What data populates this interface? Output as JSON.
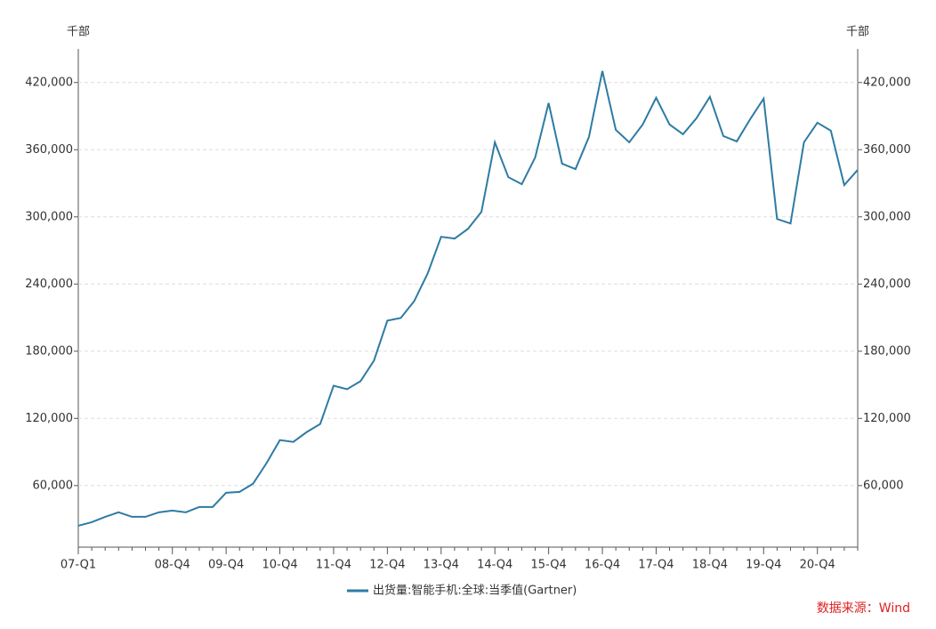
{
  "chart_data": {
    "type": "line",
    "y_label": "千部",
    "y2_label": "千部",
    "source": "数据来源：Wind",
    "categories": [
      "07-Q1",
      null,
      null,
      null,
      null,
      null,
      null,
      "08-Q4",
      null,
      null,
      null,
      "09-Q4",
      null,
      null,
      null,
      "10-Q4",
      null,
      null,
      null,
      "11-Q4",
      null,
      null,
      null,
      "12-Q4",
      null,
      null,
      null,
      "13-Q4",
      null,
      null,
      null,
      "14-Q4",
      null,
      null,
      null,
      "15-Q4",
      null,
      null,
      null,
      "16-Q4",
      null,
      null,
      null,
      "17-Q4",
      null,
      null,
      null,
      "18-Q4",
      null,
      null,
      null,
      "19-Q4",
      null,
      null,
      null,
      "20-Q4",
      null,
      null,
      null
    ],
    "series": [
      {
        "name": "出货量:智能手机:全球:当季值(Gartner)",
        "color": "#2e7ba3",
        "values": [
          24100,
          27300,
          32100,
          36100,
          32100,
          32100,
          36100,
          37700,
          36100,
          40900,
          40900,
          53600,
          54400,
          61600,
          79900,
          100600,
          99000,
          107800,
          115000,
          149200,
          146100,
          153200,
          171500,
          207300,
          209700,
          224800,
          249500,
          282200,
          280600,
          289300,
          304500,
          366600,
          335500,
          329200,
          353100,
          401700,
          347500,
          342700,
          371400,
          430300,
          377700,
          366600,
          382500,
          406400,
          382500,
          373800,
          388100,
          407200,
          372200,
          367400,
          387300,
          405600,
          298100,
          294100,
          366600,
          384100,
          377000,
          328400,
          342000
        ]
      }
    ],
    "ylim": [
      5000,
      450000
    ],
    "yticks": [
      {
        "value": 60000,
        "label": "60,000"
      },
      {
        "value": 120000,
        "label": "120,000"
      },
      {
        "value": 180000,
        "label": "180,000"
      },
      {
        "value": 240000,
        "label": "240,000"
      },
      {
        "value": 300000,
        "label": "300,000"
      },
      {
        "value": 360000,
        "label": "360,000"
      },
      {
        "value": 420000,
        "label": "420,000"
      }
    ],
    "y2lim": [
      5000,
      450000
    ],
    "y2ticks": [
      {
        "value": 60000,
        "label": "60,000"
      },
      {
        "value": 120000,
        "label": "120,000"
      },
      {
        "value": 180000,
        "label": "180,000"
      },
      {
        "value": 240000,
        "label": "240,000"
      },
      {
        "value": 300000,
        "label": "300,000"
      },
      {
        "value": 360000,
        "label": "360,000"
      },
      {
        "value": 420000,
        "label": "420,000"
      }
    ],
    "grid": true
  }
}
